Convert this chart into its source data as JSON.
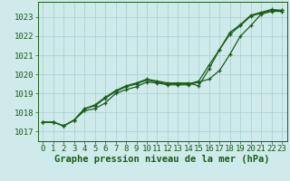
{
  "xlabel": "Graphe pression niveau de la mer (hPa)",
  "background_color": "#ceeaea",
  "grid_color": "#aacece",
  "line_color": "#1a5c1a",
  "hours": [
    0,
    1,
    2,
    3,
    4,
    5,
    6,
    7,
    8,
    9,
    10,
    11,
    12,
    13,
    14,
    15,
    16,
    17,
    18,
    19,
    20,
    21,
    22,
    23
  ],
  "series1": [
    1017.5,
    1017.5,
    1017.3,
    1017.6,
    1018.1,
    1018.2,
    1018.5,
    1019.0,
    1019.2,
    1019.35,
    1019.6,
    1019.55,
    1019.45,
    1019.45,
    1019.45,
    1019.6,
    1019.75,
    1020.2,
    1021.05,
    1022.0,
    1022.55,
    1023.15,
    1023.3,
    1023.3
  ],
  "series2": [
    1017.5,
    1017.5,
    1017.3,
    1017.6,
    1018.2,
    1018.35,
    1018.75,
    1019.1,
    1019.35,
    1019.5,
    1019.7,
    1019.6,
    1019.5,
    1019.5,
    1019.5,
    1019.65,
    1020.5,
    1021.3,
    1022.1,
    1022.55,
    1023.05,
    1023.2,
    1023.35,
    1023.35
  ],
  "series3": [
    1017.5,
    1017.5,
    1017.3,
    1017.6,
    1018.2,
    1018.4,
    1018.8,
    1019.15,
    1019.4,
    1019.55,
    1019.75,
    1019.65,
    1019.55,
    1019.55,
    1019.55,
    1019.4,
    1020.3,
    1021.3,
    1022.2,
    1022.6,
    1023.1,
    1023.25,
    1023.4,
    1023.35
  ],
  "ylim": [
    1016.5,
    1023.8
  ],
  "yticks": [
    1017,
    1018,
    1019,
    1020,
    1021,
    1022,
    1023
  ],
  "tick_fontsize": 6.5,
  "xlabel_fontsize": 7.5
}
